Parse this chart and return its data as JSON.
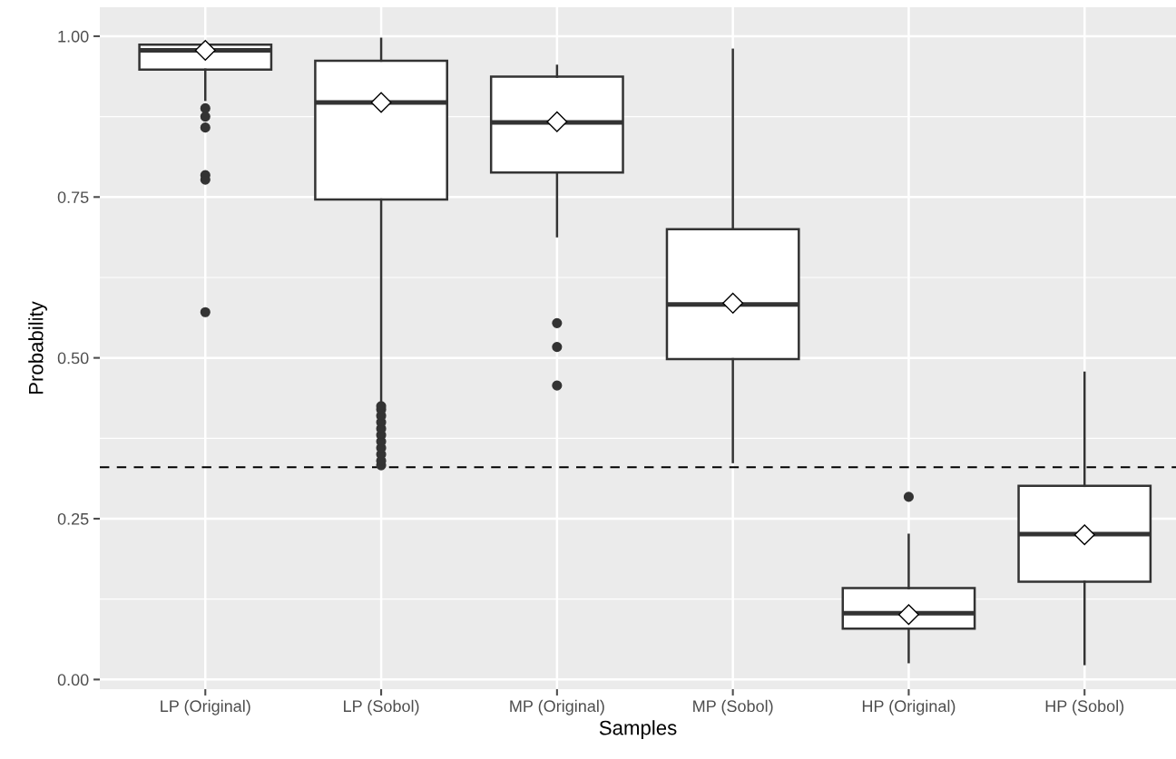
{
  "chart_data": {
    "type": "box",
    "xlabel": "Samples",
    "ylabel": "Probability",
    "categories": [
      "LP (Original)",
      "LP (Sobol)",
      "MP (Original)",
      "MP (Sobol)",
      "HP (Original)",
      "HP (Sobol)"
    ],
    "boxes": [
      {
        "low": 0.901,
        "q1": 0.948,
        "median": 0.978,
        "q3": 0.987,
        "high": 0.99,
        "mean": 0.978,
        "outliers": [
          0.888,
          0.875,
          0.858,
          0.784,
          0.777,
          0.571
        ]
      },
      {
        "low": 0.43,
        "q1": 0.746,
        "median": 0.897,
        "q3": 0.962,
        "high": 0.996,
        "mean": 0.897,
        "outliers": [
          0.333,
          0.34,
          0.35,
          0.36,
          0.37,
          0.38,
          0.39,
          0.4,
          0.41,
          0.42,
          0.425
        ]
      },
      {
        "low": 0.689,
        "q1": 0.788,
        "median": 0.866,
        "q3": 0.937,
        "high": 0.954,
        "mean": 0.867,
        "outliers": [
          0.554,
          0.517,
          0.457
        ]
      },
      {
        "low": 0.338,
        "q1": 0.498,
        "median": 0.583,
        "q3": 0.7,
        "high": 0.979,
        "mean": 0.585
      },
      {
        "low": 0.027,
        "q1": 0.079,
        "median": 0.103,
        "q3": 0.142,
        "high": 0.225,
        "mean": 0.101,
        "outliers": [
          0.284
        ]
      },
      {
        "low": 0.024,
        "q1": 0.152,
        "median": 0.226,
        "q3": 0.301,
        "high": 0.477,
        "mean": 0.225
      }
    ],
    "color": "#333333",
    "ylim": [
      -0.015,
      1.045
    ],
    "yticks": [
      {
        "value": 0,
        "label": "0.00"
      },
      {
        "value": 0.25,
        "label": "0.25"
      },
      {
        "value": 0.5,
        "label": "0.50"
      },
      {
        "value": 0.75,
        "label": "0.75"
      },
      {
        "value": 1,
        "label": "1.00"
      }
    ],
    "ref_lines": [
      {
        "axis": "y",
        "value": 0.33,
        "line_style": "dashed",
        "color": "#000000"
      }
    ],
    "grid": true
  }
}
